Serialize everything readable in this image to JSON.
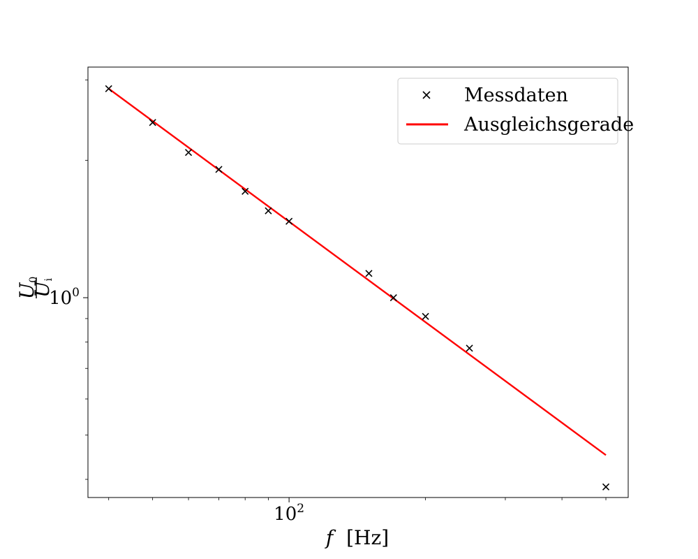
{
  "chart_data": {
    "type": "scatter",
    "x_scale": "log",
    "y_scale": "log",
    "xlim": [
      36,
      560
    ],
    "ylim": [
      0.365,
      3.2
    ],
    "x_ticks": [
      {
        "value": 100,
        "base": "10",
        "exp": "2"
      }
    ],
    "y_ticks": [
      {
        "value": 1,
        "base": "10",
        "exp": "0"
      }
    ],
    "x_minor_ticks": [
      40,
      50,
      60,
      70,
      80,
      90,
      200,
      300,
      400,
      500
    ],
    "y_minor_ticks": [
      0.4,
      0.5,
      0.6,
      0.7,
      0.8,
      0.9,
      2,
      3
    ],
    "xlabel": {
      "italic": "f",
      "unit": "[Hz]"
    },
    "ylabel": {
      "numerator": "U",
      "numerator_sub": "0",
      "denominator": "U",
      "denominator_sub": "i"
    },
    "legend_position": "top-right",
    "grid": false,
    "series": [
      {
        "name": "Messdaten",
        "kind": "markers",
        "marker": "x",
        "color": "#000000",
        "x": [
          40,
          50,
          60,
          70,
          80,
          90,
          100,
          150,
          170,
          200,
          250,
          500
        ],
        "y": [
          2.87,
          2.42,
          2.08,
          1.91,
          1.71,
          1.55,
          1.47,
          1.13,
          1.0,
          0.91,
          0.775,
          0.385
        ]
      },
      {
        "name": "Ausgleichsgerade",
        "kind": "line",
        "color": "#ff0000",
        "x": [
          40,
          500
        ],
        "y": [
          2.87,
          0.452
        ]
      }
    ]
  }
}
